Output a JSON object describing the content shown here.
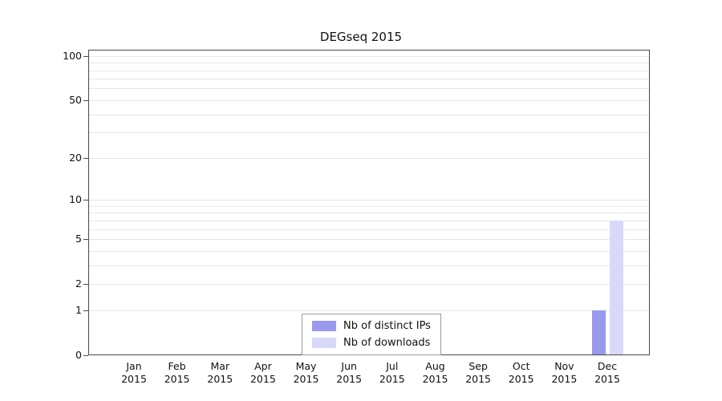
{
  "chart_data": {
    "type": "bar",
    "title": "DEGseq 2015",
    "categories": [
      {
        "month": "Jan",
        "year": "2015"
      },
      {
        "month": "Feb",
        "year": "2015"
      },
      {
        "month": "Mar",
        "year": "2015"
      },
      {
        "month": "Apr",
        "year": "2015"
      },
      {
        "month": "May",
        "year": "2015"
      },
      {
        "month": "Jun",
        "year": "2015"
      },
      {
        "month": "Jul",
        "year": "2015"
      },
      {
        "month": "Aug",
        "year": "2015"
      },
      {
        "month": "Sep",
        "year": "2015"
      },
      {
        "month": "Oct",
        "year": "2015"
      },
      {
        "month": "Nov",
        "year": "2015"
      },
      {
        "month": "Dec",
        "year": "2015"
      }
    ],
    "series": [
      {
        "name": "Nb of distinct IPs",
        "color": "#9999ee",
        "values": [
          0,
          0,
          0,
          0,
          0,
          0,
          0,
          0,
          0,
          0,
          0,
          1
        ]
      },
      {
        "name": "Nb of downloads",
        "color": "#d8d8f8",
        "values": [
          0,
          0,
          0,
          0,
          0,
          0,
          0,
          0,
          0,
          0,
          0,
          7
        ]
      }
    ],
    "xlabel": "",
    "ylabel": "",
    "y_ticks": [
      0,
      1,
      2,
      5,
      10,
      20,
      50,
      100
    ],
    "grid_values": [
      1,
      2,
      3,
      4,
      5,
      6,
      7,
      8,
      9,
      10,
      20,
      30,
      40,
      50,
      60,
      70,
      80,
      90,
      100
    ],
    "scale": "log1p",
    "ylim": [
      0,
      110
    ],
    "grid": true,
    "legend_position": "bottom-center-inside",
    "colors": {
      "grid": "#e7e7e7",
      "axis": "#4a4a4a",
      "text": "#111111",
      "legend_border": "#9a9a9a"
    }
  }
}
